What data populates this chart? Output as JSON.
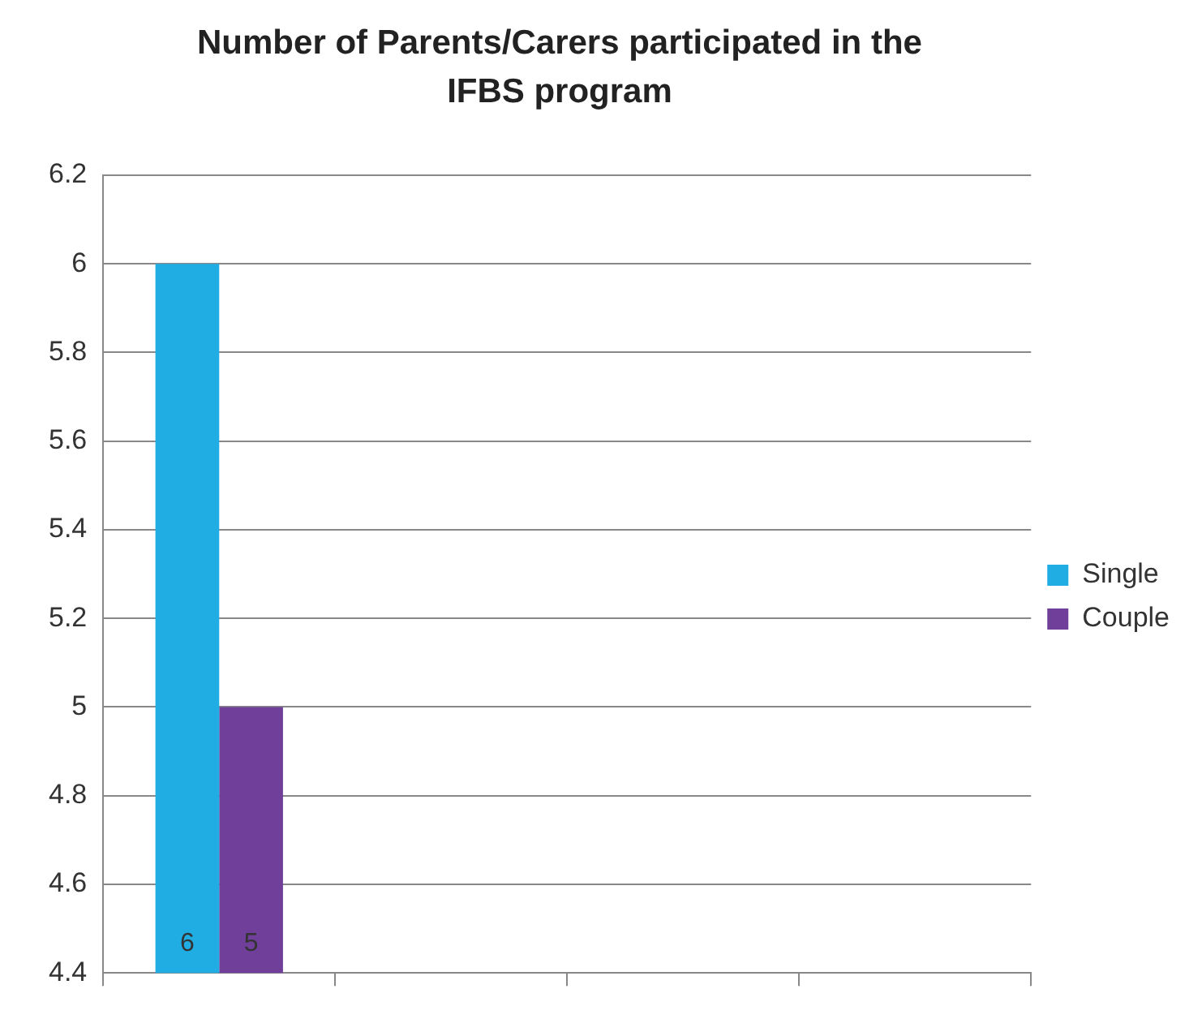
{
  "chart_data": {
    "type": "bar",
    "title": "Number of Parents/Carers participated in the IFBS program",
    "categories": [
      null,
      null,
      null,
      null
    ],
    "series": [
      {
        "name": "Single",
        "color": "#1fade4",
        "values": [
          6,
          null,
          null,
          null
        ]
      },
      {
        "name": "Couple",
        "color": "#6f3f9a",
        "values": [
          5,
          null,
          null,
          null
        ]
      }
    ],
    "ylim": [
      4.4,
      6.2
    ],
    "yticks": [
      4.4,
      4.6,
      4.8,
      5,
      5.2,
      5.4,
      5.6,
      5.8,
      6,
      6.2
    ],
    "grid": "y",
    "legend": "right",
    "data_labels": true
  }
}
